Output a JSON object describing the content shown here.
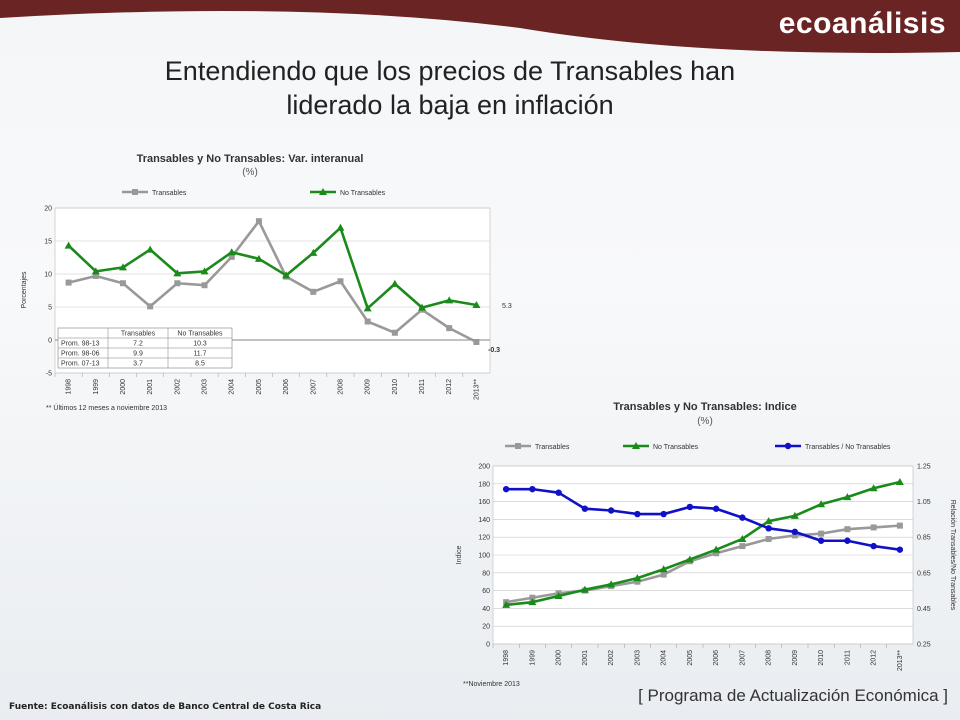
{
  "header": {
    "brand": "ecoanálisis",
    "banner_color": "#6b2424"
  },
  "slide": {
    "title_line1": "Entendiendo que los precios de Transables han",
    "title_line2": "liderado la baja en inflación"
  },
  "footer": {
    "source": "Fuente: Ecoanálisis con datos de Banco Central de Costa Rica",
    "program": "[ Programa de Actualización Económica ]"
  },
  "chart_data": [
    {
      "type": "line",
      "title": "Transables y No Transables: Var. interanual",
      "subtitle": "(%)",
      "ylabel": "Porcentajes",
      "ylim": [
        -5,
        20
      ],
      "yticks": [
        "-5",
        "0",
        "5",
        "10",
        "15",
        "20"
      ],
      "grid": true,
      "legend": "top",
      "categories": [
        "1998",
        "1999",
        "2000",
        "2001",
        "2002",
        "2003",
        "2004",
        "2005",
        "2006",
        "2007",
        "2008",
        "2009",
        "2010",
        "2011",
        "2012",
        "2013**"
      ],
      "series": [
        {
          "name": "Transables",
          "color": "#999999",
          "marker": "square",
          "values": [
            8.7,
            9.7,
            8.6,
            5.1,
            8.6,
            8.3,
            12.6,
            18.0,
            9.6,
            7.3,
            8.9,
            2.8,
            1.1,
            4.6,
            1.8,
            -0.3
          ]
        },
        {
          "name": "No Transables",
          "color": "#1a8a1a",
          "marker": "triangle",
          "values": [
            14.3,
            10.4,
            11.0,
            13.7,
            10.1,
            10.4,
            13.3,
            12.3,
            9.8,
            13.2,
            17.0,
            4.8,
            8.5,
            4.9,
            6.0,
            5.3
          ]
        }
      ],
      "end_labels": [
        "5.3",
        "-0.3"
      ],
      "table": {
        "headers": [
          "",
          "Transables",
          "No Transables"
        ],
        "rows": [
          [
            "Prom. 98-13",
            "7.2",
            "10.3"
          ],
          [
            "Prom. 98-06",
            "9.9",
            "11.7"
          ],
          [
            "Prom. 07-13",
            "3.7",
            "8.5"
          ]
        ]
      },
      "note": "** Últimos 12 meses a noviembre 2013"
    },
    {
      "type": "line",
      "title": "Transables y No Transables: Indice",
      "subtitle": "(%)",
      "ylabel": "Indice",
      "y2label": "Relación Transables/No Transables",
      "ylim": [
        0,
        200
      ],
      "y2lim": [
        0.25,
        1.25
      ],
      "yticks": [
        "0",
        "20",
        "40",
        "60",
        "80",
        "100",
        "120",
        "140",
        "160",
        "180",
        "200"
      ],
      "y2ticks": [
        "0.25",
        "0.45",
        "0.65",
        "0.85",
        "1.05",
        "1.25"
      ],
      "grid": true,
      "legend": "top",
      "categories": [
        "1998",
        "1999",
        "2000",
        "2001",
        "2002",
        "2003",
        "2004",
        "2005",
        "2006",
        "2007",
        "2008",
        "2009",
        "2010",
        "2011",
        "2012",
        "2013**"
      ],
      "series": [
        {
          "name": "Transables",
          "color": "#999999",
          "marker": "square",
          "axis": "left",
          "values": [
            47,
            52,
            57,
            60,
            65,
            70,
            78,
            93,
            102,
            110,
            118,
            122,
            124,
            129,
            131,
            133
          ]
        },
        {
          "name": "No Transables",
          "color": "#1a8a1a",
          "marker": "triangle",
          "axis": "left",
          "values": [
            44,
            47,
            54,
            61,
            67,
            74,
            84,
            95,
            106,
            118,
            138,
            144,
            157,
            165,
            175,
            182
          ]
        },
        {
          "name": "Transables / No Transables",
          "color": "#1010c8",
          "marker": "circle",
          "axis": "right",
          "values": [
            1.12,
            1.12,
            1.1,
            1.01,
            1.0,
            0.98,
            0.98,
            1.02,
            1.01,
            0.96,
            0.9,
            0.88,
            0.83,
            0.83,
            0.8,
            0.78
          ]
        }
      ],
      "note": "**Noviembre 2013"
    }
  ]
}
